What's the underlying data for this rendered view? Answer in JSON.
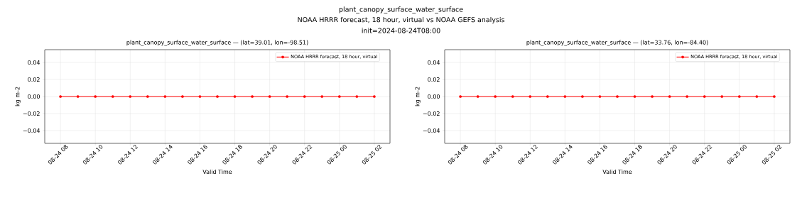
{
  "chart_data": [
    {
      "type": "other",
      "title": "plant_canopy_surface_water_surface",
      "subtitle": "NOAA HRRR forecast, 18 hour, virtual vs NOAA GEFS analysis",
      "annotations": [
        "init=2024-08-24T08:00"
      ]
    },
    {
      "type": "line",
      "title": "plant_canopy_surface_water_surface — (lat=39.01, lon=-98.51)",
      "xlabel": "Valid Time",
      "ylabel": "kg m-2",
      "x": [
        "2024-08-24T08:00",
        "2024-08-24T09:00",
        "2024-08-24T10:00",
        "2024-08-24T11:00",
        "2024-08-24T12:00",
        "2024-08-24T13:00",
        "2024-08-24T14:00",
        "2024-08-24T15:00",
        "2024-08-24T16:00",
        "2024-08-24T17:00",
        "2024-08-24T18:00",
        "2024-08-24T19:00",
        "2024-08-24T20:00",
        "2024-08-24T21:00",
        "2024-08-24T22:00",
        "2024-08-24T23:00",
        "2024-08-25T00:00",
        "2024-08-25T01:00",
        "2024-08-25T02:00"
      ],
      "series": [
        {
          "name": "NOAA HRRR forecast, 18 hour, virtual",
          "color": "#ff0000",
          "values": [
            0,
            0,
            0,
            0,
            0,
            0,
            0,
            0,
            0,
            0,
            0,
            0,
            0,
            0,
            0,
            0,
            0,
            0,
            0
          ]
        }
      ],
      "xlim": [
        "2024-08-24T07:06",
        "2024-08-25T02:54"
      ],
      "xticks": [
        {
          "value": "2024-08-24T08:00",
          "label": "08-24 08"
        },
        {
          "value": "2024-08-24T10:00",
          "label": "08-24 10"
        },
        {
          "value": "2024-08-24T12:00",
          "label": "08-24 12"
        },
        {
          "value": "2024-08-24T14:00",
          "label": "08-24 14"
        },
        {
          "value": "2024-08-24T16:00",
          "label": "08-24 16"
        },
        {
          "value": "2024-08-24T18:00",
          "label": "08-24 18"
        },
        {
          "value": "2024-08-24T20:00",
          "label": "08-24 20"
        },
        {
          "value": "2024-08-24T22:00",
          "label": "08-24 22"
        },
        {
          "value": "2024-08-25T00:00",
          "label": "08-25 00"
        },
        {
          "value": "2024-08-25T02:00",
          "label": "08-25 02"
        }
      ],
      "ylim": [
        -0.055,
        0.055
      ],
      "yticks": [
        {
          "value": -0.04,
          "label": "−0.04"
        },
        {
          "value": -0.02,
          "label": "−0.02"
        },
        {
          "value": 0,
          "label": "0.00"
        },
        {
          "value": 0.02,
          "label": "0.02"
        },
        {
          "value": 0.04,
          "label": "0.04"
        }
      ],
      "grid": true,
      "legend": "top right",
      "marker": "circle",
      "line_style": "solid"
    },
    {
      "type": "line",
      "title": "plant_canopy_surface_water_surface — (lat=33.76, lon=-84.40)",
      "xlabel": "Valid Time",
      "ylabel": "kg m-2",
      "x": [
        "2024-08-24T08:00",
        "2024-08-24T09:00",
        "2024-08-24T10:00",
        "2024-08-24T11:00",
        "2024-08-24T12:00",
        "2024-08-24T13:00",
        "2024-08-24T14:00",
        "2024-08-24T15:00",
        "2024-08-24T16:00",
        "2024-08-24T17:00",
        "2024-08-24T18:00",
        "2024-08-24T19:00",
        "2024-08-24T20:00",
        "2024-08-24T21:00",
        "2024-08-24T22:00",
        "2024-08-24T23:00",
        "2024-08-25T00:00",
        "2024-08-25T01:00",
        "2024-08-25T02:00"
      ],
      "series": [
        {
          "name": "NOAA HRRR forecast, 18 hour, virtual",
          "color": "#ff0000",
          "values": [
            0,
            0,
            0,
            0,
            0,
            0,
            0,
            0,
            0,
            0,
            0,
            0,
            0,
            0,
            0,
            0,
            0,
            0,
            0
          ]
        }
      ],
      "xlim": [
        "2024-08-24T07:06",
        "2024-08-25T02:54"
      ],
      "xticks": [
        {
          "value": "2024-08-24T08:00",
          "label": "08-24 08"
        },
        {
          "value": "2024-08-24T10:00",
          "label": "08-24 10"
        },
        {
          "value": "2024-08-24T12:00",
          "label": "08-24 12"
        },
        {
          "value": "2024-08-24T14:00",
          "label": "08-24 14"
        },
        {
          "value": "2024-08-24T16:00",
          "label": "08-24 16"
        },
        {
          "value": "2024-08-24T18:00",
          "label": "08-24 18"
        },
        {
          "value": "2024-08-24T20:00",
          "label": "08-24 20"
        },
        {
          "value": "2024-08-24T22:00",
          "label": "08-24 22"
        },
        {
          "value": "2024-08-25T00:00",
          "label": "08-25 00"
        },
        {
          "value": "2024-08-25T02:00",
          "label": "08-25 02"
        }
      ],
      "ylim": [
        -0.055,
        0.055
      ],
      "yticks": [
        {
          "value": -0.04,
          "label": "−0.04"
        },
        {
          "value": -0.02,
          "label": "−0.02"
        },
        {
          "value": 0,
          "label": "0.00"
        },
        {
          "value": 0.02,
          "label": "0.02"
        },
        {
          "value": 0.04,
          "label": "0.04"
        }
      ],
      "grid": true,
      "legend": "top right",
      "marker": "circle",
      "line_style": "solid"
    }
  ]
}
